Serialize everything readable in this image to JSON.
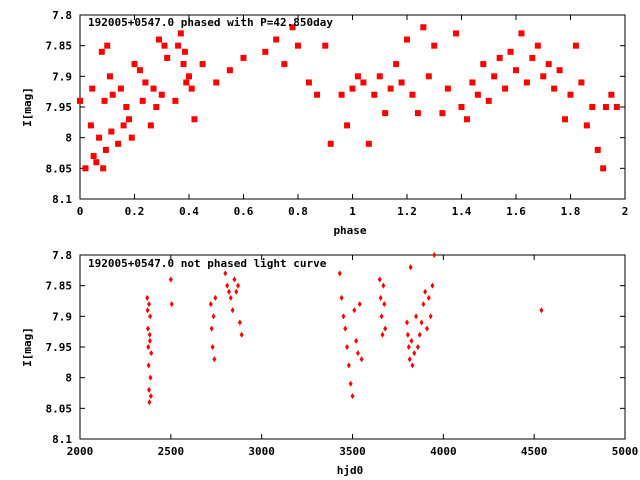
{
  "chart_data": [
    {
      "type": "scatter",
      "title": "192005+0547.0 phased with P=42.850day",
      "xlabel": "phase",
      "ylabel": "I[mag]",
      "xlim": [
        0,
        2
      ],
      "ylim": [
        7.8,
        8.1
      ],
      "y_inverted": true,
      "xticks": [
        "0",
        "0.2",
        "0.4",
        "0.6",
        "0.8",
        "1",
        "1.2",
        "1.4",
        "1.6",
        "1.8",
        "2"
      ],
      "yticks": [
        "7.8",
        "7.85",
        "7.9",
        "7.95",
        "8",
        "8.05",
        "8.1"
      ],
      "grid": false,
      "marker_color": "#ff0000",
      "marker": "filled-square",
      "series": [
        {
          "points": [
            [
              0.0,
              7.94
            ],
            [
              0.02,
              8.05
            ],
            [
              0.04,
              7.98
            ],
            [
              0.045,
              7.92
            ],
            [
              0.05,
              8.03
            ],
            [
              0.06,
              8.04
            ],
            [
              0.07,
              8.0
            ],
            [
              0.08,
              7.86
            ],
            [
              0.085,
              8.05
            ],
            [
              0.09,
              7.94
            ],
            [
              0.095,
              8.02
            ],
            [
              0.1,
              7.85
            ],
            [
              0.11,
              7.9
            ],
            [
              0.115,
              7.99
            ],
            [
              0.12,
              7.93
            ],
            [
              0.14,
              8.01
            ],
            [
              0.15,
              7.92
            ],
            [
              0.16,
              7.98
            ],
            [
              0.17,
              7.95
            ],
            [
              0.18,
              7.97
            ],
            [
              0.19,
              8.0
            ],
            [
              0.2,
              7.88
            ],
            [
              0.22,
              7.89
            ],
            [
              0.23,
              7.94
            ],
            [
              0.24,
              7.91
            ],
            [
              0.26,
              7.98
            ],
            [
              0.27,
              7.92
            ],
            [
              0.28,
              7.95
            ],
            [
              0.29,
              7.84
            ],
            [
              0.3,
              7.93
            ],
            [
              0.31,
              7.85
            ],
            [
              0.32,
              7.87
            ],
            [
              0.35,
              7.94
            ],
            [
              0.36,
              7.85
            ],
            [
              0.37,
              7.83
            ],
            [
              0.38,
              7.88
            ],
            [
              0.385,
              7.86
            ],
            [
              0.39,
              7.91
            ],
            [
              0.4,
              7.9
            ],
            [
              0.41,
              7.92
            ],
            [
              0.42,
              7.97
            ],
            [
              0.45,
              7.88
            ],
            [
              0.5,
              7.91
            ],
            [
              0.55,
              7.89
            ],
            [
              0.6,
              7.87
            ],
            [
              0.68,
              7.86
            ],
            [
              0.72,
              7.84
            ],
            [
              0.75,
              7.88
            ],
            [
              0.78,
              7.82
            ],
            [
              0.8,
              7.85
            ],
            [
              0.84,
              7.91
            ],
            [
              0.87,
              7.93
            ],
            [
              0.9,
              7.85
            ],
            [
              0.92,
              8.01
            ],
            [
              0.96,
              7.93
            ],
            [
              0.98,
              7.98
            ],
            [
              1.0,
              7.92
            ],
            [
              1.02,
              7.9
            ],
            [
              1.04,
              7.91
            ],
            [
              1.06,
              8.01
            ],
            [
              1.08,
              7.93
            ],
            [
              1.1,
              7.9
            ],
            [
              1.12,
              7.96
            ],
            [
              1.14,
              7.92
            ],
            [
              1.16,
              7.88
            ],
            [
              1.18,
              7.91
            ],
            [
              1.2,
              7.84
            ],
            [
              1.22,
              7.93
            ],
            [
              1.24,
              7.96
            ],
            [
              1.26,
              7.82
            ],
            [
              1.28,
              7.9
            ],
            [
              1.3,
              7.85
            ],
            [
              1.33,
              7.96
            ],
            [
              1.35,
              7.92
            ],
            [
              1.38,
              7.83
            ],
            [
              1.4,
              7.95
            ],
            [
              1.42,
              7.97
            ],
            [
              1.44,
              7.91
            ],
            [
              1.46,
              7.93
            ],
            [
              1.48,
              7.88
            ],
            [
              1.5,
              7.94
            ],
            [
              1.52,
              7.9
            ],
            [
              1.54,
              7.87
            ],
            [
              1.56,
              7.92
            ],
            [
              1.58,
              7.86
            ],
            [
              1.6,
              7.89
            ],
            [
              1.62,
              7.83
            ],
            [
              1.64,
              7.91
            ],
            [
              1.66,
              7.87
            ],
            [
              1.68,
              7.85
            ],
            [
              1.7,
              7.9
            ],
            [
              1.72,
              7.88
            ],
            [
              1.74,
              7.92
            ],
            [
              1.76,
              7.89
            ],
            [
              1.78,
              7.97
            ],
            [
              1.8,
              7.93
            ],
            [
              1.82,
              7.85
            ],
            [
              1.84,
              7.91
            ],
            [
              1.86,
              7.98
            ],
            [
              1.88,
              7.95
            ],
            [
              1.9,
              8.02
            ],
            [
              1.92,
              8.05
            ],
            [
              1.93,
              7.95
            ],
            [
              1.95,
              7.93
            ],
            [
              1.97,
              7.95
            ]
          ]
        }
      ]
    },
    {
      "type": "scatter",
      "title": "192005+0547.0 not phased light curve",
      "xlabel": "hjd0",
      "ylabel": "I[mag]",
      "xlim": [
        2000,
        5000
      ],
      "ylim": [
        7.8,
        8.1
      ],
      "y_inverted": true,
      "xticks": [
        "2000",
        "2500",
        "3000",
        "3500",
        "4000",
        "4500",
        "5000"
      ],
      "yticks": [
        "7.8",
        "7.85",
        "7.9",
        "7.95",
        "8",
        "8.05",
        "8.1"
      ],
      "grid": false,
      "marker_color": "#ff0000",
      "marker": "diamond",
      "series": [
        {
          "points": [
            [
              2370,
              7.87
            ],
            [
              2372,
              7.89
            ],
            [
              2374,
              7.92
            ],
            [
              2376,
              7.95
            ],
            [
              2378,
              7.98
            ],
            [
              2380,
              8.02
            ],
            [
              2382,
              8.04
            ],
            [
              2384,
              7.93
            ],
            [
              2386,
              7.9
            ],
            [
              2388,
              8.0
            ],
            [
              2390,
              8.03
            ],
            [
              2392,
              7.96
            ],
            [
              2380,
              7.88
            ],
            [
              2385,
              7.94
            ],
            [
              2500,
              7.84
            ],
            [
              2505,
              7.88
            ],
            [
              2720,
              7.88
            ],
            [
              2725,
              7.92
            ],
            [
              2730,
              7.95
            ],
            [
              2735,
              7.9
            ],
            [
              2740,
              7.97
            ],
            [
              2745,
              7.87
            ],
            [
              2800,
              7.83
            ],
            [
              2810,
              7.85
            ],
            [
              2820,
              7.86
            ],
            [
              2830,
              7.87
            ],
            [
              2840,
              7.89
            ],
            [
              2850,
              7.84
            ],
            [
              2860,
              7.86
            ],
            [
              2870,
              7.85
            ],
            [
              2880,
              7.91
            ],
            [
              2890,
              7.93
            ],
            [
              3430,
              7.83
            ],
            [
              3440,
              7.87
            ],
            [
              3450,
              7.9
            ],
            [
              3460,
              7.92
            ],
            [
              3470,
              7.95
            ],
            [
              3480,
              7.98
            ],
            [
              3490,
              8.01
            ],
            [
              3500,
              8.03
            ],
            [
              3510,
              7.89
            ],
            [
              3520,
              7.94
            ],
            [
              3530,
              7.96
            ],
            [
              3540,
              7.88
            ],
            [
              3550,
              7.97
            ],
            [
              3650,
              7.84
            ],
            [
              3655,
              7.87
            ],
            [
              3660,
              7.9
            ],
            [
              3665,
              7.93
            ],
            [
              3670,
              7.85
            ],
            [
              3675,
              7.88
            ],
            [
              3680,
              7.92
            ],
            [
              3800,
              7.91
            ],
            [
              3805,
              7.93
            ],
            [
              3810,
              7.95
            ],
            [
              3815,
              7.97
            ],
            [
              3820,
              7.82
            ],
            [
              3825,
              7.94
            ],
            [
              3830,
              7.98
            ],
            [
              3840,
              7.96
            ],
            [
              3850,
              7.9
            ],
            [
              3860,
              7.95
            ],
            [
              3870,
              7.93
            ],
            [
              3880,
              7.91
            ],
            [
              3890,
              7.88
            ],
            [
              3900,
              7.86
            ],
            [
              3910,
              7.92
            ],
            [
              3920,
              7.87
            ],
            [
              3930,
              7.9
            ],
            [
              3940,
              7.85
            ],
            [
              3950,
              7.8
            ],
            [
              4540,
              7.89
            ]
          ]
        }
      ]
    }
  ]
}
